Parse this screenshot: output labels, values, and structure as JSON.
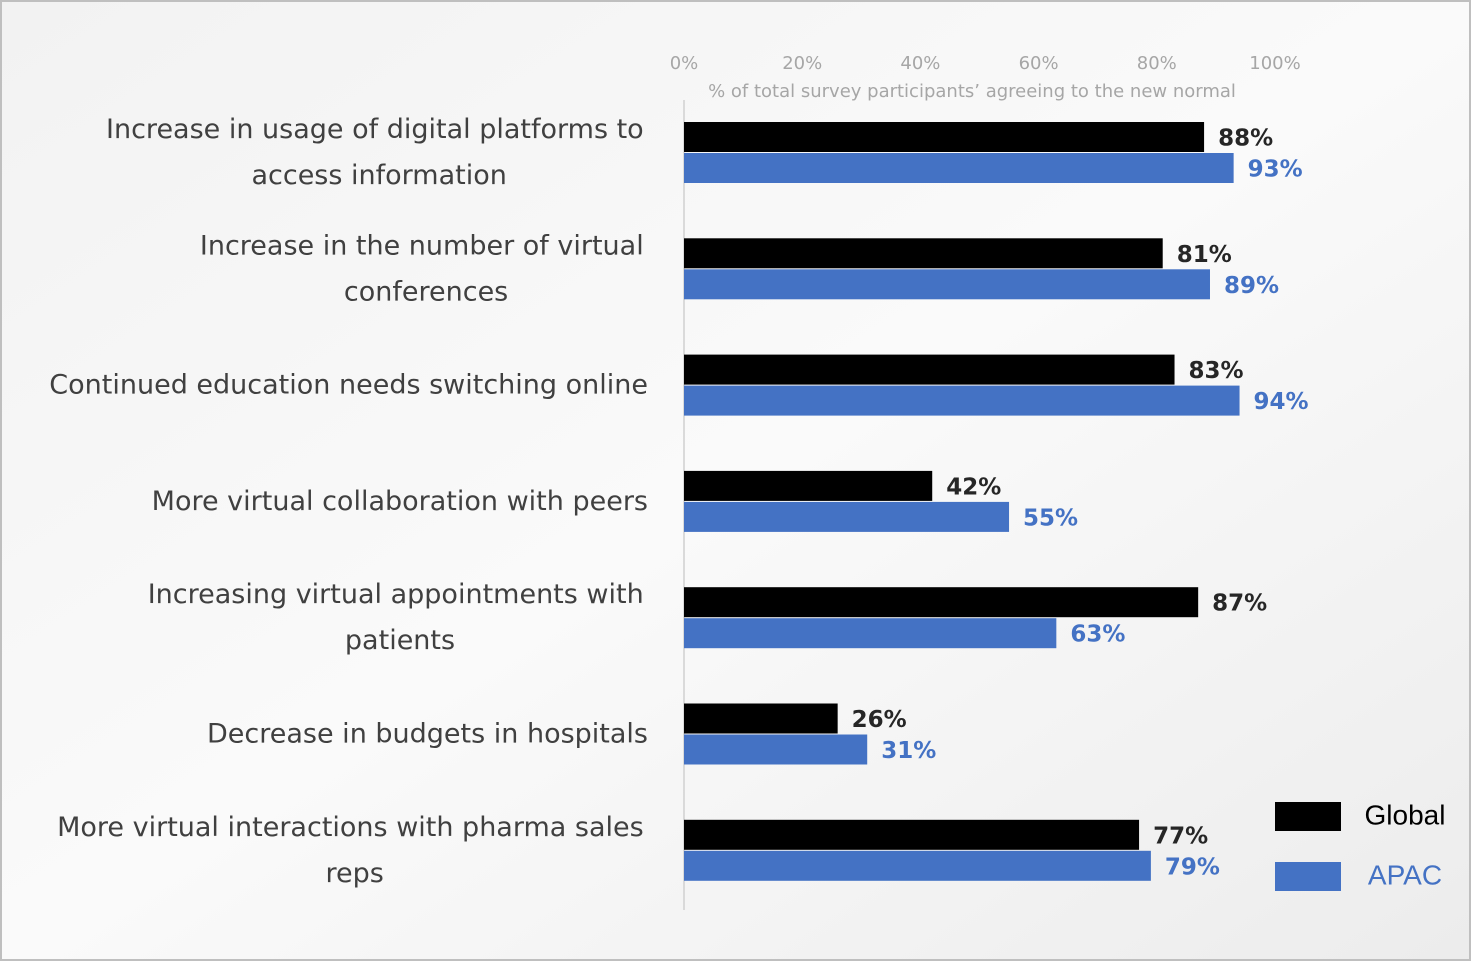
{
  "chart_data": {
    "type": "bar",
    "orientation": "horizontal",
    "x_label": "% of total survey participants’ agreeing to the new normal",
    "categories": [
      "Increase in usage of digital platforms to access information",
      "Increase in the number of virtual conferences",
      "Continued education needs switching online",
      "More virtual collaboration with peers",
      "Increasing virtual appointments with patients",
      "Decrease in budgets in hospitals",
      "More virtual interactions with pharma sales reps"
    ],
    "series": [
      {
        "name": "Global",
        "color": "#000000",
        "values": [
          88,
          81,
          83,
          42,
          87,
          26,
          77
        ],
        "value_labels": [
          "88%",
          "81%",
          "83%",
          "42%",
          "87%",
          "26%",
          "77%"
        ]
      },
      {
        "name": "APAC",
        "color": "#4472c4",
        "values": [
          93,
          89,
          94,
          55,
          63,
          31,
          79
        ],
        "value_labels": [
          "93%",
          "89%",
          "94%",
          "55%",
          "63%",
          "31%",
          "79%"
        ]
      }
    ],
    "xlim": [
      0,
      100
    ],
    "xticks": [
      {
        "value": 0,
        "label": "0%"
      },
      {
        "value": 20,
        "label": "20%"
      },
      {
        "value": 40,
        "label": "40%"
      },
      {
        "value": 60,
        "label": "60%"
      },
      {
        "value": 80,
        "label": "80%"
      },
      {
        "value": 100,
        "label": "100%"
      }
    ],
    "grid": false,
    "legend": "bottom-right"
  }
}
